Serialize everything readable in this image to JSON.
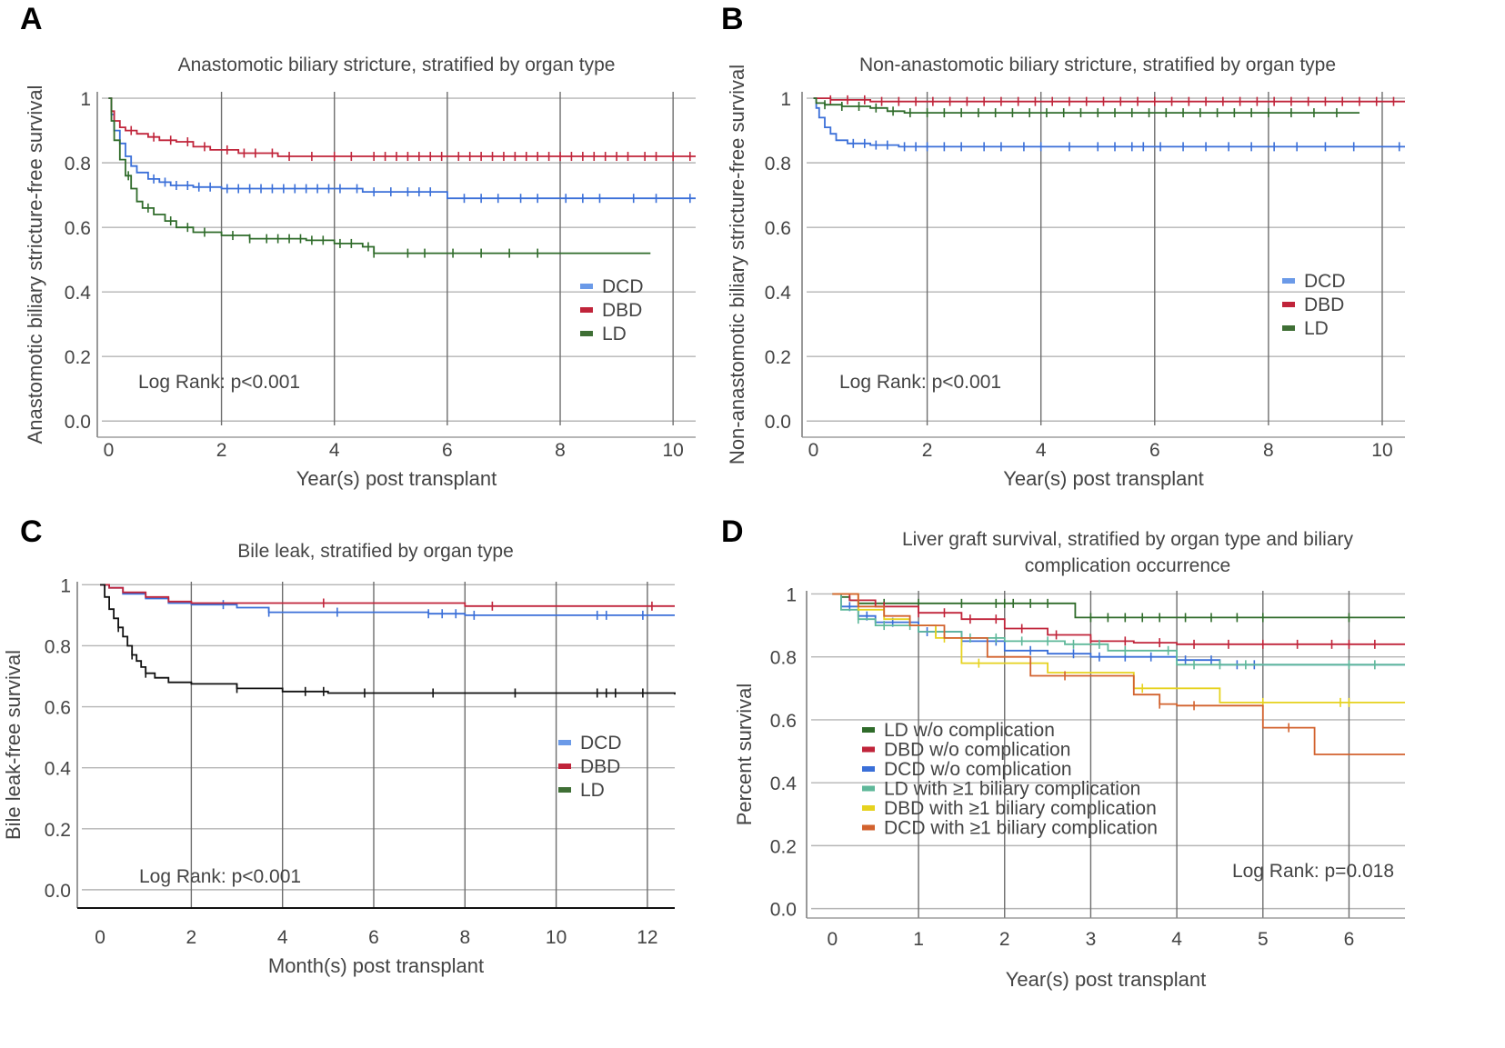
{
  "figure": {
    "colors": {
      "DCD": "#3a6fd8",
      "DBD": "#c0243a",
      "LD": "#2f6b2a",
      "LD_black": "#111111",
      "LD_comp": "#5fb89a",
      "DBD_comp": "#e6d21e",
      "DCD_comp": "#d2622e"
    }
  },
  "chart_data": [
    {
      "panel": "A",
      "type": "line",
      "title": "Anastomotic biliary stricture, stratified by organ type",
      "xlabel": "Year(s) post transplant",
      "ylabel": "Anastomotic biliary stricture-free survival",
      "xlim": [
        -0.2,
        10.4
      ],
      "ylim": [
        -0.05,
        1.02
      ],
      "xticks": [
        0,
        2,
        4,
        6,
        8,
        10
      ],
      "xtick_labels": [
        "0",
        "2",
        "4",
        "6",
        "8",
        "10"
      ],
      "yticks": [
        0,
        0.2,
        0.4,
        0.6,
        0.8,
        1
      ],
      "ytick_labels": [
        "0.0",
        "0.2",
        "0.4",
        "0.6",
        "0.8",
        "1"
      ],
      "grid": true,
      "legend_position": "right",
      "annotation": "Log Rank: p<0.001",
      "series": [
        {
          "name": "DCD",
          "color_key": "DCD",
          "x": [
            0,
            0.05,
            0.1,
            0.2,
            0.3,
            0.4,
            0.5,
            0.7,
            0.9,
            1.1,
            1.5,
            2.0,
            3.0,
            4.3,
            4.5,
            6.0,
            8.0,
            10.4
          ],
          "y": [
            1,
            0.95,
            0.9,
            0.86,
            0.82,
            0.79,
            0.77,
            0.75,
            0.74,
            0.73,
            0.725,
            0.72,
            0.72,
            0.72,
            0.71,
            0.69,
            0.69,
            0.69
          ],
          "censor_x": [
            0.8,
            1.0,
            1.2,
            1.4,
            1.6,
            1.8,
            2.1,
            2.3,
            2.5,
            2.7,
            2.9,
            3.1,
            3.3,
            3.5,
            3.7,
            3.9,
            4.1,
            4.4,
            4.7,
            5.0,
            5.3,
            5.5,
            5.7,
            6.3,
            6.6,
            6.9,
            7.3,
            7.6,
            8.1,
            8.4,
            8.7,
            9.3,
            9.7,
            10.3
          ]
        },
        {
          "name": "DBD",
          "color_key": "DBD",
          "x": [
            0,
            0.05,
            0.1,
            0.2,
            0.3,
            0.5,
            0.7,
            0.9,
            1.2,
            1.5,
            1.8,
            2.3,
            3.0,
            4.0,
            10.4
          ],
          "y": [
            1,
            0.96,
            0.93,
            0.91,
            0.9,
            0.89,
            0.88,
            0.87,
            0.865,
            0.85,
            0.84,
            0.83,
            0.82,
            0.82,
            0.82
          ],
          "censor_x": [
            0.4,
            0.8,
            1.1,
            1.4,
            1.7,
            2.1,
            2.4,
            2.6,
            2.9,
            3.2,
            3.6,
            4.0,
            4.3,
            4.7,
            4.9,
            5.1,
            5.3,
            5.5,
            5.7,
            5.9,
            6.2,
            6.4,
            6.6,
            6.8,
            7.0,
            7.2,
            7.4,
            7.6,
            7.8,
            8.0,
            8.2,
            8.4,
            8.6,
            8.8,
            9.0,
            9.2,
            9.5,
            9.7,
            10.0,
            10.3
          ]
        },
        {
          "name": "LD",
          "color_key": "LD",
          "x": [
            0,
            0.05,
            0.1,
            0.2,
            0.3,
            0.4,
            0.5,
            0.6,
            0.8,
            1.0,
            1.2,
            1.5,
            2.0,
            2.5,
            3.5,
            4.0,
            4.5,
            4.7,
            9.6
          ],
          "y": [
            1,
            0.93,
            0.87,
            0.81,
            0.76,
            0.72,
            0.68,
            0.66,
            0.64,
            0.62,
            0.6,
            0.585,
            0.575,
            0.565,
            0.56,
            0.55,
            0.54,
            0.52,
            0.52
          ],
          "censor_x": [
            0.35,
            0.7,
            1.1,
            1.4,
            1.7,
            2.2,
            2.5,
            2.8,
            3.0,
            3.2,
            3.4,
            3.6,
            3.8,
            4.1,
            4.3,
            4.6,
            4.7,
            5.3,
            5.6,
            6.1,
            6.6,
            7.1,
            7.6
          ]
        }
      ]
    },
    {
      "panel": "B",
      "type": "line",
      "title": "Non-anastomotic biliary stricture, stratified by organ type",
      "xlabel": "Year(s) post transplant",
      "ylabel": "Non-anastomotic biliary stricture-free survival",
      "xlim": [
        -0.2,
        10.4
      ],
      "ylim": [
        -0.05,
        1.02
      ],
      "xticks": [
        0,
        2,
        4,
        6,
        8,
        10
      ],
      "xtick_labels": [
        "0",
        "2",
        "4",
        "6",
        "8",
        "10"
      ],
      "yticks": [
        0,
        0.2,
        0.4,
        0.6,
        0.8,
        1
      ],
      "ytick_labels": [
        "0.0",
        "0.2",
        "0.4",
        "0.6",
        "0.8",
        "1"
      ],
      "grid": true,
      "legend_position": "right",
      "annotation": "Log Rank: p<0.001",
      "series": [
        {
          "name": "DCD",
          "color_key": "DCD",
          "x": [
            0,
            0.05,
            0.1,
            0.2,
            0.3,
            0.4,
            0.6,
            1.0,
            1.5,
            10.4
          ],
          "y": [
            1,
            0.97,
            0.94,
            0.91,
            0.89,
            0.87,
            0.86,
            0.855,
            0.85,
            0.85
          ],
          "censor_x": [
            0.7,
            0.9,
            1.1,
            1.3,
            1.6,
            1.8,
            2.0,
            2.3,
            2.6,
            3.0,
            3.3,
            3.7,
            4.0,
            4.5,
            5.0,
            5.3,
            5.6,
            5.8,
            6.1,
            6.5,
            6.9,
            7.3,
            7.7,
            8.1,
            8.5,
            9.0,
            9.5,
            10.3
          ]
        },
        {
          "name": "DBD",
          "color_key": "DBD",
          "x": [
            0,
            0.3,
            1.0,
            10.4
          ],
          "y": [
            1,
            0.995,
            0.99,
            0.99
          ],
          "censor_x": [
            0.3,
            0.6,
            0.9,
            1.2,
            1.5,
            1.8,
            2.1,
            2.4,
            2.7,
            3.0,
            3.3,
            3.6,
            3.9,
            4.2,
            4.5,
            4.8,
            5.1,
            5.4,
            5.7,
            6.0,
            6.3,
            6.6,
            6.9,
            7.2,
            7.5,
            7.8,
            8.1,
            8.4,
            8.7,
            9.0,
            9.3,
            9.6,
            9.9,
            10.2
          ]
        },
        {
          "name": "LD",
          "color_key": "LD",
          "x": [
            0,
            0.05,
            0.2,
            0.5,
            1.0,
            1.3,
            1.6,
            9.6
          ],
          "y": [
            1,
            0.985,
            0.98,
            0.975,
            0.97,
            0.96,
            0.955,
            0.955
          ],
          "censor_x": [
            0.2,
            0.5,
            0.8,
            1.1,
            1.4,
            1.7,
            2.0,
            2.3,
            2.6,
            2.9,
            3.2,
            3.5,
            3.8,
            4.1,
            4.4,
            4.7,
            5.0,
            5.3,
            5.6,
            5.9,
            6.2,
            6.5,
            6.8,
            7.1,
            7.4,
            7.7,
            8.0,
            8.4,
            8.8,
            9.2
          ]
        }
      ]
    },
    {
      "panel": "C",
      "type": "line",
      "title": "Bile leak, stratified by organ type",
      "xlabel": "Month(s) post transplant",
      "ylabel": "Bile leak-free survival",
      "xlim": [
        -0.5,
        12.6
      ],
      "ylim": [
        -0.06,
        1.01
      ],
      "xticks": [
        0,
        2,
        4,
        6,
        8,
        10,
        12
      ],
      "xtick_labels": [
        "0",
        "2",
        "4",
        "6",
        "8",
        "10",
        "12"
      ],
      "yticks": [
        0,
        0.2,
        0.4,
        0.6,
        0.8,
        1
      ],
      "ytick_labels": [
        "0.0",
        "0.2",
        "0.4",
        "0.6",
        "0.8",
        "1"
      ],
      "grid": true,
      "legend_position": "right",
      "annotation": "Log Rank: p<0.001",
      "series": [
        {
          "name": "DCD",
          "color_key": "DCD",
          "x": [
            0,
            0.2,
            0.5,
            1.0,
            1.5,
            2.0,
            3.0,
            3.7,
            7.2,
            8.0,
            12.6
          ],
          "y": [
            1,
            0.99,
            0.97,
            0.955,
            0.94,
            0.935,
            0.925,
            0.91,
            0.905,
            0.9,
            0.9
          ],
          "censor_x": [
            2.7,
            3.7,
            5.2,
            7.2,
            7.5,
            7.8,
            8.2,
            10.9,
            11.1,
            11.9
          ]
        },
        {
          "name": "DBD",
          "color_key": "DBD",
          "x": [
            0,
            0.2,
            0.5,
            1.0,
            1.5,
            2.0,
            3.0,
            8.0,
            12.6
          ],
          "y": [
            1,
            0.99,
            0.975,
            0.96,
            0.945,
            0.94,
            0.94,
            0.93,
            0.93
          ],
          "censor_x": [
            4.9,
            8.6,
            12.1
          ]
        },
        {
          "name": "LD",
          "color_key": "LD_black",
          "x": [
            0,
            0.1,
            0.2,
            0.3,
            0.4,
            0.5,
            0.6,
            0.7,
            0.8,
            0.9,
            1.0,
            1.2,
            1.5,
            2.0,
            3.0,
            4.0,
            5.0,
            12.6
          ],
          "y": [
            1,
            0.96,
            0.92,
            0.89,
            0.86,
            0.83,
            0.8,
            0.77,
            0.75,
            0.73,
            0.71,
            0.695,
            0.68,
            0.675,
            0.66,
            0.65,
            0.645,
            0.64
          ],
          "censor_x": [
            0.4,
            0.7,
            1.0,
            3.0,
            4.5,
            4.9,
            5.8,
            7.3,
            9.1,
            10.9,
            11.1,
            11.3,
            11.9
          ]
        }
      ]
    },
    {
      "panel": "D",
      "type": "line",
      "title": "Liver graft survival, stratified by organ type and biliary complication occurrence",
      "title_lines": [
        "Liver graft survival, stratified by organ type and biliary",
        "complication occurrence"
      ],
      "xlabel": "Year(s) post transplant",
      "ylabel": "Percent survival",
      "xlim": [
        -0.3,
        6.65
      ],
      "ylim": [
        -0.03,
        1.01
      ],
      "xticks": [
        0,
        1,
        2,
        3,
        4,
        5,
        6
      ],
      "xtick_labels": [
        "0",
        "1",
        "2",
        "3",
        "4",
        "5",
        "6"
      ],
      "yticks": [
        0,
        0.2,
        0.4,
        0.6,
        0.8,
        1
      ],
      "ytick_labels": [
        "0.0",
        "0.2",
        "0.4",
        "0.6",
        "0.8",
        "1"
      ],
      "grid": true,
      "legend_position": "lower-left",
      "annotation": "Log Rank: p=0.018",
      "series": [
        {
          "name": "LD w/o complication",
          "color_key": "LD",
          "x": [
            0,
            0.1,
            0.2,
            0.3,
            2.8,
            2.82,
            6.65
          ],
          "y": [
            1,
            0.99,
            0.98,
            0.97,
            0.97,
            0.925,
            0.925
          ],
          "censor_x": [
            0.6,
            1.0,
            1.5,
            1.9,
            2.0,
            2.1,
            2.3,
            2.5,
            3.0,
            3.2,
            3.4,
            3.6,
            3.8,
            4.1,
            4.4,
            4.7,
            5.0,
            6.0
          ]
        },
        {
          "name": "DBD w/o complication",
          "color_key": "DBD",
          "x": [
            0,
            0.2,
            0.5,
            1.0,
            1.5,
            2.0,
            2.5,
            3.0,
            3.5,
            4.0,
            6.65
          ],
          "y": [
            1,
            0.98,
            0.96,
            0.94,
            0.92,
            0.89,
            0.87,
            0.85,
            0.845,
            0.84,
            0.84
          ],
          "censor_x": [
            0.3,
            0.6,
            1.0,
            1.3,
            1.6,
            1.9,
            2.2,
            2.6,
            3.0,
            3.4,
            3.8,
            4.2,
            4.6,
            5.0,
            5.4,
            5.8,
            6.0,
            6.3
          ]
        },
        {
          "name": "DCD w/o complication",
          "color_key": "DCD",
          "x": [
            0,
            0.1,
            0.3,
            0.5,
            1.0,
            1.5,
            2.0,
            2.5,
            3.0,
            4.0,
            4.5,
            6.65
          ],
          "y": [
            1,
            0.96,
            0.93,
            0.91,
            0.88,
            0.85,
            0.82,
            0.81,
            0.8,
            0.79,
            0.775,
            0.775
          ],
          "censor_x": [
            0.2,
            0.4,
            0.7,
            1.1,
            1.5,
            1.9,
            2.3,
            2.8,
            3.1,
            3.4,
            3.7,
            4.1,
            4.4,
            4.7,
            4.9
          ]
        },
        {
          "name": "LD with ≥1 biliary complication",
          "color_key": "LD_comp",
          "x": [
            0,
            0.1,
            0.3,
            0.5,
            1.0,
            1.5,
            2.0,
            2.7,
            3.2,
            4.0,
            6.65
          ],
          "y": [
            1,
            0.95,
            0.92,
            0.9,
            0.88,
            0.86,
            0.85,
            0.84,
            0.82,
            0.775,
            0.775
          ],
          "censor_x": [
            0.3,
            0.6,
            0.9,
            1.2,
            1.6,
            1.9,
            2.2,
            2.5,
            2.8,
            3.1,
            3.4,
            3.9,
            4.2,
            4.5,
            4.8,
            6.0,
            6.3
          ]
        },
        {
          "name": "DBD with ≥1 biliary complication",
          "color_key": "DBD_comp",
          "x": [
            0,
            0.3,
            0.6,
            0.9,
            1.2,
            1.5,
            2.0,
            2.5,
            3.0,
            3.5,
            4.5,
            6.65
          ],
          "y": [
            1,
            0.95,
            0.92,
            0.9,
            0.86,
            0.78,
            0.78,
            0.75,
            0.75,
            0.7,
            0.655,
            0.655
          ],
          "censor_x": [
            1.3,
            1.7,
            3.6,
            5.0,
            5.9,
            6.0
          ]
        },
        {
          "name": "DCD with ≥1 biliary complication",
          "color_key": "DCD_comp",
          "x": [
            0,
            0.3,
            0.6,
            0.9,
            1.3,
            1.8,
            2.3,
            3.0,
            3.5,
            3.8,
            4.0,
            4.9,
            5.0,
            5.6,
            6.65
          ],
          "y": [
            1,
            0.96,
            0.93,
            0.9,
            0.86,
            0.8,
            0.74,
            0.74,
            0.68,
            0.65,
            0.645,
            0.645,
            0.575,
            0.49,
            0.49
          ],
          "censor_x": [
            2.7,
            3.8,
            4.2,
            5.3
          ]
        }
      ],
      "legend_order_color_keys": [
        "LD",
        "DBD",
        "DCD",
        "LD_comp",
        "DBD_comp",
        "DCD_comp"
      ]
    }
  ],
  "panels_meta": {
    "A": {
      "letter": "A"
    },
    "B": {
      "letter": "B"
    },
    "C": {
      "letter": "C"
    },
    "D": {
      "letter": "D"
    }
  }
}
